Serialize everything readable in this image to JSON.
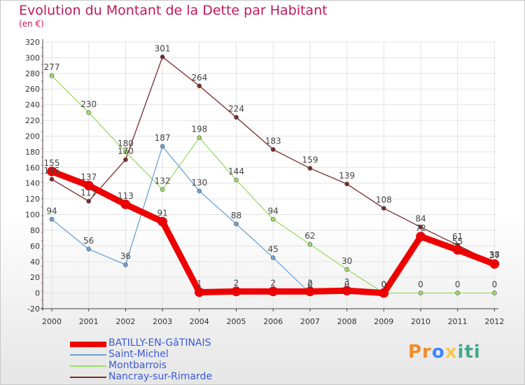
{
  "chart_data": {
    "type": "line",
    "title": "Evolution du Montant de la Dette par Habitant",
    "subtitle": "(en €)",
    "x": [
      "2000",
      "2001",
      "2002",
      "2003",
      "2004",
      "2005",
      "2006",
      "2007",
      "2008",
      "2009",
      "2010",
      "2011",
      "2012"
    ],
    "ylim": [
      -20,
      320
    ],
    "yticks": [
      -20,
      0,
      20,
      40,
      60,
      80,
      100,
      120,
      140,
      160,
      180,
      200,
      220,
      240,
      260,
      280,
      300,
      320
    ],
    "grid": true,
    "legend_position": "bottom-left",
    "series": [
      {
        "name": "BATILLY-EN-GâTINAIS",
        "color": "#ee0000",
        "width": 9,
        "values": [
          155,
          137,
          113,
          91,
          1,
          2,
          2,
          2,
          3,
          0,
          72,
          55,
          37
        ],
        "labels": [
          "155",
          "137",
          "113",
          "91",
          "1",
          "2",
          "2",
          "2",
          "3",
          "0",
          "72",
          "55",
          "37"
        ]
      },
      {
        "name": "Saint-Michel",
        "color": "#6fa3d6",
        "width": 1.3,
        "values": [
          94,
          56,
          36,
          187,
          130,
          88,
          45,
          0,
          0,
          0,
          null,
          null,
          null
        ],
        "labels": [
          "94",
          "56",
          "36",
          "187",
          "130",
          "88",
          "45",
          "0",
          "0",
          "0",
          "",
          "",
          ""
        ]
      },
      {
        "name": "Montbarrois",
        "color": "#99dd66",
        "width": 1.3,
        "values": [
          277,
          230,
          180,
          132,
          198,
          144,
          94,
          62,
          30,
          0,
          0,
          0,
          0
        ],
        "labels": [
          "277",
          "230",
          "180",
          "132",
          "198",
          "144",
          "94",
          "62",
          "30",
          "0",
          "0",
          "0",
          "0"
        ]
      },
      {
        "name": "Nancray-sur-Rimarde",
        "color": "#7a2a2a",
        "width": 1.3,
        "values": [
          145,
          117,
          170,
          301,
          264,
          224,
          183,
          159,
          139,
          108,
          84,
          61,
          38
        ],
        "labels": [
          "145",
          "117",
          "170",
          "301",
          "264",
          "224",
          "183",
          "159",
          "139",
          "108",
          "84",
          "61",
          "38"
        ]
      }
    ]
  },
  "brand": {
    "parts": [
      "Pr",
      "o",
      "x",
      "iti"
    ],
    "colors": [
      "#f28c28",
      "#3a86ff",
      "#f9c74f",
      "#43aa8b"
    ]
  }
}
